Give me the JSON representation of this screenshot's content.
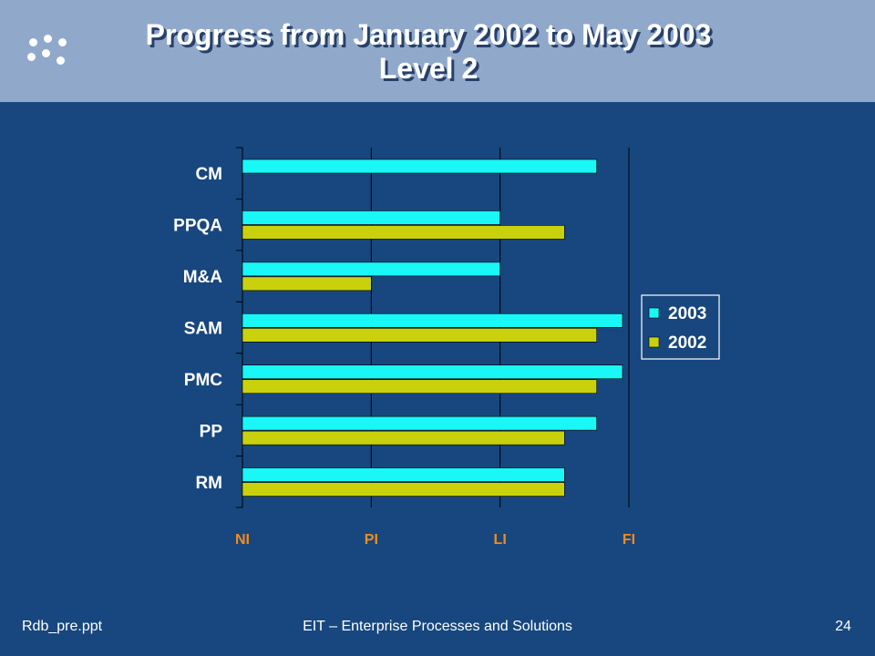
{
  "slide": {
    "title_line1": "Progress from January 2002 to May 2003",
    "title_line2": "Level 2"
  },
  "footer": {
    "left": "Rdb_pre.ppt",
    "center": "EIT – Enterprise Processes and Solutions",
    "page_number": "24"
  },
  "colors": {
    "background": "#17477e",
    "header": "#90a9cb",
    "series_2003": "#19f7f6",
    "series_2002": "#c8d10c",
    "x_tick_label": "#f28c1e"
  },
  "chart_data": {
    "type": "bar",
    "orientation": "horizontal",
    "categories": [
      "CM",
      "PPQA",
      "M&A",
      "SAM",
      "PMC",
      "PP",
      "RM"
    ],
    "x_ticks": [
      "NI",
      "PI",
      "LI",
      "FI"
    ],
    "xlim": [
      0,
      3
    ],
    "series": [
      {
        "name": "2003",
        "values": [
          2.75,
          2.0,
          2.0,
          2.95,
          2.95,
          2.75,
          2.5
        ]
      },
      {
        "name": "2002",
        "values": [
          null,
          2.5,
          1.0,
          2.75,
          2.75,
          2.5,
          2.5
        ]
      }
    ],
    "grid": true,
    "legend_position": "right"
  }
}
